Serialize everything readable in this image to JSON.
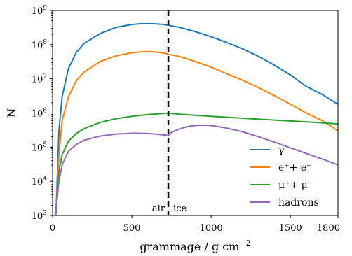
{
  "chart_data": {
    "type": "line",
    "xlabel": "grammage / g cm",
    "xlabel_exponent": "−2",
    "ylabel": "N",
    "x_range": [
      0,
      1800
    ],
    "y_range": [
      1000,
      1000000000
    ],
    "y_scale": "log",
    "grid": false,
    "legend_position": "lower-right",
    "x_ticks": [
      {
        "value": 0,
        "label": "0"
      },
      {
        "value": 500,
        "label": "500"
      },
      {
        "value": 1000,
        "label": "1000"
      },
      {
        "value": 1500,
        "label": "1500"
      },
      {
        "value": 1800,
        "label": "1800"
      }
    ],
    "y_ticks": [
      {
        "value": 1000,
        "base": "10",
        "exp": "3"
      },
      {
        "value": 10000,
        "base": "10",
        "exp": "4"
      },
      {
        "value": 100000,
        "base": "10",
        "exp": "5"
      },
      {
        "value": 1000000,
        "base": "10",
        "exp": "6"
      },
      {
        "value": 10000000,
        "base": "10",
        "exp": "7"
      },
      {
        "value": 100000000,
        "base": "10",
        "exp": "8"
      },
      {
        "value": 1000000000,
        "base": "10",
        "exp": "9"
      }
    ],
    "boundary": {
      "x": 730,
      "left_label": "air",
      "right_label": "ice"
    },
    "series": [
      {
        "name": "γ",
        "color": "#1f77b4",
        "x": [
          20,
          25,
          40,
          60,
          100,
          150,
          200,
          300,
          400,
          500,
          550,
          600,
          650,
          700,
          730,
          800,
          900,
          1000,
          1100,
          1200,
          1300,
          1400,
          1500,
          1600,
          1700,
          1800
        ],
        "y": [
          1000,
          3000,
          300000,
          3000000,
          20000000,
          60000000,
          110000000,
          210000000,
          320000000,
          390000000,
          405000000,
          410000000,
          405000000,
          390000000,
          370000000,
          320000000,
          240000000,
          170000000,
          115000000,
          75000000,
          45000000,
          25000000,
          13000000,
          6000000,
          3500000,
          1800000
        ]
      },
      {
        "name": "e⁺+ e⁻",
        "color": "#ff7f0e",
        "x": [
          20,
          25,
          40,
          60,
          100,
          150,
          200,
          300,
          400,
          500,
          550,
          600,
          650,
          700,
          730,
          800,
          900,
          1000,
          1100,
          1200,
          1300,
          1400,
          1500,
          1600,
          1700,
          1800
        ],
        "y": [
          1000,
          2000,
          60000,
          600000,
          3000000,
          9000000,
          16000000,
          32000000,
          47000000,
          58000000,
          61000000,
          63000000,
          61000000,
          57000000,
          52000000,
          45000000,
          32000000,
          22000000,
          14000000,
          9000000,
          5500000,
          3200000,
          1800000,
          1000000,
          600000,
          300000
        ]
      },
      {
        "name": "μ⁺+ μ⁻",
        "color": "#2ca02c",
        "x": [
          20,
          25,
          40,
          60,
          100,
          150,
          200,
          300,
          400,
          500,
          600,
          700,
          730,
          800,
          1000,
          1200,
          1400,
          1600,
          1800
        ],
        "y": [
          1000,
          2000,
          20000,
          60000,
          150000,
          250000,
          350000,
          530000,
          680000,
          800000,
          900000,
          970000,
          990000,
          920000,
          800000,
          700000,
          620000,
          550000,
          480000
        ]
      },
      {
        "name": "hadrons",
        "color": "#9467bd",
        "x": [
          20,
          25,
          40,
          60,
          100,
          150,
          200,
          300,
          400,
          500,
          550,
          600,
          650,
          700,
          730,
          750,
          800,
          850,
          900,
          950,
          1000,
          1100,
          1200,
          1300,
          1400,
          1500,
          1600,
          1700,
          1800
        ],
        "y": [
          1000,
          2000,
          10000,
          30000,
          75000,
          120000,
          160000,
          210000,
          240000,
          255000,
          255000,
          250000,
          240000,
          228000,
          220000,
          270000,
          340000,
          400000,
          430000,
          440000,
          430000,
          360000,
          280000,
          200000,
          140000,
          95000,
          65000,
          45000,
          30000
        ]
      }
    ]
  }
}
